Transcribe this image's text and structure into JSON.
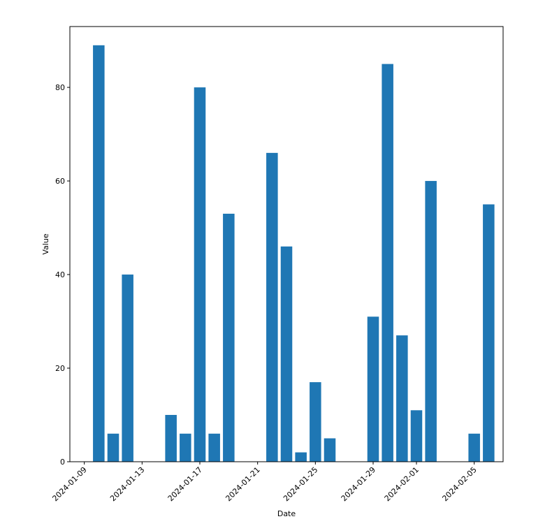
{
  "chart_data": {
    "type": "bar",
    "title": "",
    "xlabel": "Date",
    "ylabel": "Value",
    "ylim": [
      0,
      93
    ],
    "x_range_days": [
      "2024-01-08",
      "2024-02-07"
    ],
    "grid": false,
    "bar_color": "#1f77b4",
    "series": [
      {
        "name": "Value",
        "points": [
          {
            "date": "2024-01-10",
            "value": 89
          },
          {
            "date": "2024-01-11",
            "value": 6
          },
          {
            "date": "2024-01-12",
            "value": 40
          },
          {
            "date": "2024-01-15",
            "value": 10
          },
          {
            "date": "2024-01-16",
            "value": 6
          },
          {
            "date": "2024-01-17",
            "value": 80
          },
          {
            "date": "2024-01-18",
            "value": 6
          },
          {
            "date": "2024-01-19",
            "value": 53
          },
          {
            "date": "2024-01-22",
            "value": 66
          },
          {
            "date": "2024-01-23",
            "value": 46
          },
          {
            "date": "2024-01-24",
            "value": 2
          },
          {
            "date": "2024-01-25",
            "value": 17
          },
          {
            "date": "2024-01-26",
            "value": 5
          },
          {
            "date": "2024-01-29",
            "value": 31
          },
          {
            "date": "2024-01-30",
            "value": 85
          },
          {
            "date": "2024-01-31",
            "value": 27
          },
          {
            "date": "2024-02-01",
            "value": 11
          },
          {
            "date": "2024-02-02",
            "value": 60
          },
          {
            "date": "2024-02-05",
            "value": 6
          },
          {
            "date": "2024-02-06",
            "value": 55
          }
        ]
      }
    ],
    "y_ticks": [
      0,
      20,
      40,
      60,
      80
    ],
    "y_tick_labels": [
      "0",
      "20",
      "40",
      "60",
      "80"
    ],
    "x_ticks": [
      "2024-01-09",
      "2024-01-13",
      "2024-01-17",
      "2024-01-21",
      "2024-01-25",
      "2024-01-29",
      "2024-02-01",
      "2024-02-05"
    ],
    "x_tick_labels": [
      "2024-01-09",
      "2024-01-13",
      "2024-01-17",
      "2024-01-21",
      "2024-01-25",
      "2024-01-29",
      "2024-02-01",
      "2024-02-05"
    ]
  }
}
